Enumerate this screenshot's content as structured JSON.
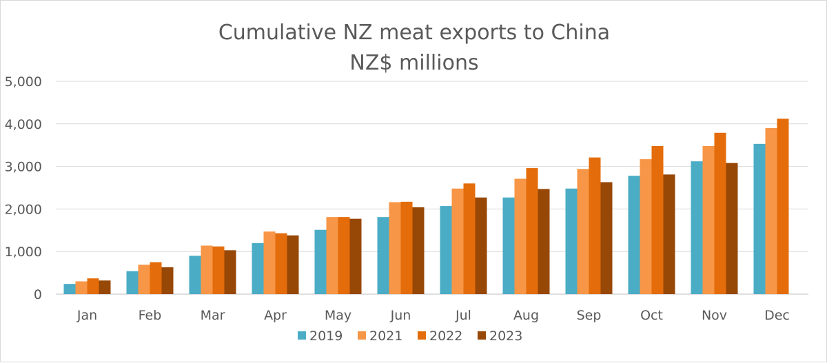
{
  "chart_data": {
    "type": "bar",
    "title": "Cumulative NZ meat exports to China",
    "subtitle": "NZ$ millions",
    "xlabel": "",
    "ylabel": "",
    "ylim": [
      0,
      5000
    ],
    "yticks": [
      0,
      1000,
      2000,
      3000,
      4000,
      5000
    ],
    "ytick_labels": [
      "0",
      "1,000",
      "2,000",
      "3,000",
      "4,000",
      "5,000"
    ],
    "grid": true,
    "legend_position": "bottom",
    "categories": [
      "Jan",
      "Feb",
      "Mar",
      "Apr",
      "May",
      "Jun",
      "Jul",
      "Aug",
      "Sep",
      "Oct",
      "Nov",
      "Dec"
    ],
    "series": [
      {
        "name": "2019",
        "color": "#4bacc6",
        "values": [
          240,
          540,
          900,
          1200,
          1510,
          1810,
          2070,
          2270,
          2480,
          2780,
          3120,
          3530
        ]
      },
      {
        "name": "2021",
        "color": "#f79646",
        "values": [
          300,
          690,
          1140,
          1470,
          1810,
          2160,
          2480,
          2710,
          2940,
          3170,
          3480,
          3900
        ]
      },
      {
        "name": "2022",
        "color": "#e46c0a",
        "values": [
          370,
          750,
          1120,
          1430,
          1810,
          2170,
          2600,
          2960,
          3210,
          3480,
          3790,
          4120
        ]
      },
      {
        "name": "2023",
        "color": "#974706",
        "values": [
          320,
          630,
          1030,
          1380,
          1770,
          2040,
          2270,
          2470,
          2630,
          2810,
          3080,
          null
        ]
      }
    ]
  }
}
